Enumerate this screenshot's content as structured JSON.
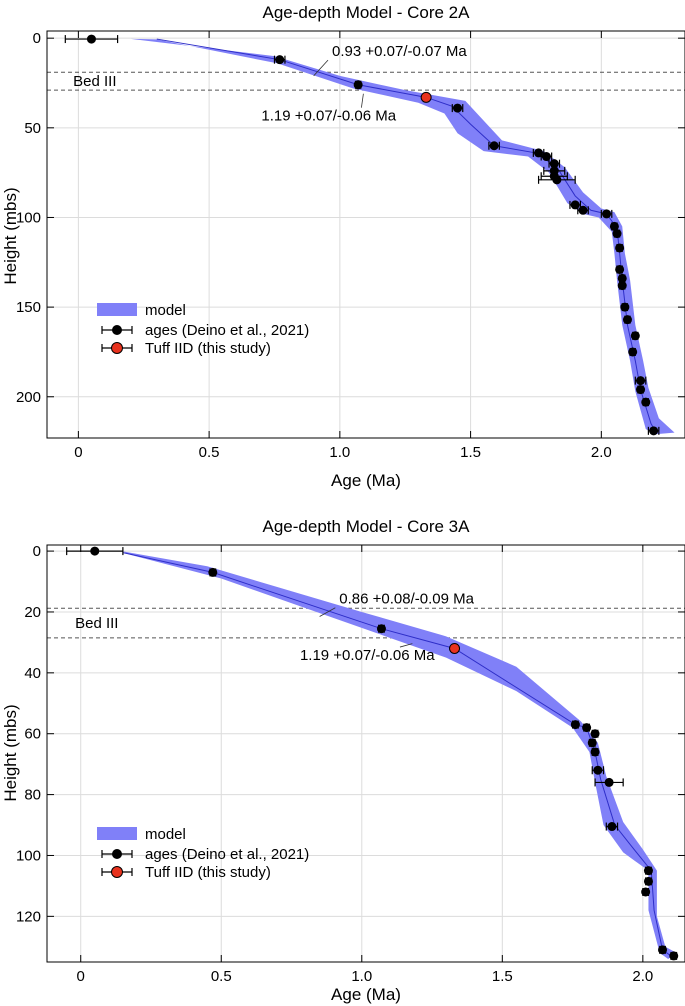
{
  "chart_data": [
    {
      "type": "scatter",
      "title": "Age-depth Model - Core 2A",
      "xlabel": "Age (Ma)",
      "ylabel": "Height (mbs)",
      "xlim": [
        -0.12,
        2.32
      ],
      "ylim": [
        223,
        -4
      ],
      "xticks": [
        0,
        0.5,
        1,
        1.5,
        2
      ],
      "xtick_labels": [
        "0",
        "0.5",
        "1.0",
        "1.5",
        "2.0"
      ],
      "yticks": [
        0,
        50,
        100,
        150,
        200
      ],
      "ytick_labels": [
        "0",
        "50",
        "100",
        "150",
        "200"
      ],
      "grid": true,
      "hlines": [
        19,
        29
      ],
      "bed_label": "Bed III",
      "bed_label_pos": [
        -0.02,
        24
      ],
      "annotations": [
        {
          "text": "0.93 +0.07/-0.07 Ma",
          "x": 0.9,
          "y": 21,
          "tx": 0.97,
          "ty": 10
        },
        {
          "text": "1.19 +0.07/-0.06 Ma",
          "x": 1.09,
          "y": 31,
          "tx": 0.7,
          "ty": 46
        }
      ],
      "model_line": [
        [
          0.3,
          0.5
        ],
        [
          0.77,
          12
        ],
        [
          1.07,
          26
        ],
        [
          1.33,
          33
        ],
        [
          1.43,
          38
        ],
        [
          1.5,
          48
        ],
        [
          1.59,
          60
        ],
        [
          1.75,
          64
        ],
        [
          1.83,
          72
        ],
        [
          1.9,
          88
        ],
        [
          1.96,
          96
        ],
        [
          2.02,
          98
        ],
        [
          2.06,
          106
        ],
        [
          2.07,
          120
        ],
        [
          2.08,
          135
        ],
        [
          2.1,
          160
        ],
        [
          2.13,
          180
        ],
        [
          2.15,
          196
        ],
        [
          2.19,
          215
        ],
        [
          2.21,
          220
        ]
      ],
      "model_band": [
        [
          [
            0.2,
            0.4
          ],
          [
            0.75,
            10
          ],
          [
            1.0,
            21
          ],
          [
            1.25,
            29
          ],
          [
            1.48,
            35
          ],
          [
            1.55,
            46
          ],
          [
            1.62,
            57
          ],
          [
            1.78,
            63
          ],
          [
            1.86,
            72
          ],
          [
            1.93,
            86
          ],
          [
            2.0,
            95
          ],
          [
            2.05,
            97
          ],
          [
            2.08,
            105
          ],
          [
            2.09,
            120
          ],
          [
            2.11,
            135
          ],
          [
            2.13,
            160
          ],
          [
            2.16,
            180
          ],
          [
            2.18,
            195
          ],
          [
            2.22,
            212
          ],
          [
            2.28,
            220
          ]
        ],
        [
          [
            0.3,
            0.7
          ],
          [
            0.76,
            14
          ],
          [
            1.05,
            28
          ],
          [
            1.3,
            36
          ],
          [
            1.4,
            42
          ],
          [
            1.45,
            53
          ],
          [
            1.55,
            63
          ],
          [
            1.72,
            66
          ],
          [
            1.8,
            75
          ],
          [
            1.87,
            92
          ],
          [
            1.93,
            98
          ],
          [
            1.99,
            100
          ],
          [
            2.04,
            108
          ],
          [
            2.05,
            120
          ],
          [
            2.06,
            135
          ],
          [
            2.08,
            160
          ],
          [
            2.11,
            180
          ],
          [
            2.13,
            197
          ],
          [
            2.17,
            218
          ],
          [
            2.2,
            221
          ]
        ]
      ],
      "ages": [
        {
          "x": 0.05,
          "y": 0.5,
          "xerr": [
            0.1,
            0.1
          ]
        },
        {
          "x": 0.77,
          "y": 12,
          "xerr": [
            0.02,
            0.02
          ]
        },
        {
          "x": 1.07,
          "y": 26,
          "xerr": [
            0.01,
            0.01
          ]
        },
        {
          "x": 1.45,
          "y": 39,
          "xerr": [
            0.02,
            0.02
          ]
        },
        {
          "x": 1.59,
          "y": 60,
          "xerr": [
            0.02,
            0.02
          ]
        },
        {
          "x": 1.76,
          "y": 64,
          "xerr": [
            0.02,
            0.02
          ]
        },
        {
          "x": 1.79,
          "y": 66,
          "xerr": [
            0.02,
            0.02
          ]
        },
        {
          "x": 1.82,
          "y": 70,
          "xerr": [
            0.02,
            0.02
          ]
        },
        {
          "x": 1.82,
          "y": 74,
          "xerr": [
            0.04,
            0.04
          ]
        },
        {
          "x": 1.82,
          "y": 77,
          "xerr": [
            0.05,
            0.05
          ]
        },
        {
          "x": 1.83,
          "y": 79,
          "xerr": [
            0.07,
            0.07
          ]
        },
        {
          "x": 1.9,
          "y": 93,
          "xerr": [
            0.02,
            0.02
          ]
        },
        {
          "x": 1.93,
          "y": 96,
          "xerr": [
            0.02,
            0.02
          ]
        },
        {
          "x": 2.02,
          "y": 98,
          "xerr": [
            0.02,
            0.02
          ]
        },
        {
          "x": 2.05,
          "y": 105,
          "xerr": [
            0.01,
            0.01
          ]
        },
        {
          "x": 2.06,
          "y": 109,
          "xerr": [
            0.01,
            0.01
          ]
        },
        {
          "x": 2.07,
          "y": 117,
          "xerr": [
            0.01,
            0.01
          ]
        },
        {
          "x": 2.07,
          "y": 129,
          "xerr": [
            0.01,
            0.01
          ]
        },
        {
          "x": 2.08,
          "y": 134,
          "xerr": [
            0.01,
            0.01
          ]
        },
        {
          "x": 2.08,
          "y": 138,
          "xerr": [
            0.01,
            0.01
          ]
        },
        {
          "x": 2.09,
          "y": 150,
          "xerr": [
            0.01,
            0.01
          ]
        },
        {
          "x": 2.1,
          "y": 157,
          "xerr": [
            0.01,
            0.01
          ]
        },
        {
          "x": 2.13,
          "y": 166,
          "xerr": [
            0.01,
            0.01
          ]
        },
        {
          "x": 2.12,
          "y": 175,
          "xerr": [
            0.01,
            0.01
          ]
        },
        {
          "x": 2.15,
          "y": 191,
          "xerr": [
            0.02,
            0.02
          ]
        },
        {
          "x": 2.15,
          "y": 196,
          "xerr": [
            0.01,
            0.01
          ]
        },
        {
          "x": 2.17,
          "y": 203,
          "xerr": [
            0.01,
            0.01
          ]
        },
        {
          "x": 2.2,
          "y": 219,
          "xerr": [
            0.02,
            0.02
          ]
        }
      ],
      "tuff": [
        {
          "x": 1.33,
          "y": 33
        }
      ],
      "legend": {
        "placement": "lower-left",
        "model": "model",
        "ages": "ages (Deino et al., 2021)",
        "tuff": "Tuff IID (this study)"
      }
    },
    {
      "type": "scatter",
      "title": "Age-depth Model - Core 3A",
      "xlabel": "Age (Ma)",
      "ylabel": "Height (mbs)",
      "xlim": [
        -0.12,
        2.15
      ],
      "ylim": [
        135,
        -2
      ],
      "xticks": [
        0,
        0.5,
        1,
        1.5,
        2
      ],
      "xtick_labels": [
        "0",
        "0.5",
        "1.0",
        "1.5",
        "2.0"
      ],
      "yticks": [
        0,
        20,
        40,
        60,
        80,
        100,
        120
      ],
      "ytick_labels": [
        "0",
        "20",
        "40",
        "60",
        "80",
        "100",
        "120"
      ],
      "grid": true,
      "hlines": [
        18.8,
        28.5
      ],
      "bed_label": "Bed III",
      "bed_label_pos": [
        -0.02,
        23.6
      ],
      "annotations": [
        {
          "text": "0.86 +0.08/-0.09 Ma",
          "x": 0.85,
          "y": 21.5,
          "tx": 0.92,
          "ty": 17.3
        },
        {
          "text": "1.19 +0.07/-0.06 Ma",
          "x": 1.18,
          "y": 30.4,
          "tx": 0.78,
          "ty": 35.8
        }
      ],
      "model_line": [
        [
          0.15,
          0.5
        ],
        [
          0.47,
          7
        ],
        [
          1.07,
          25.5
        ],
        [
          1.33,
          32
        ],
        [
          1.76,
          57
        ],
        [
          1.8,
          58
        ],
        [
          1.83,
          66
        ],
        [
          1.85,
          75
        ],
        [
          1.9,
          90
        ],
        [
          1.96,
          97
        ],
        [
          2.03,
          105
        ],
        [
          2.04,
          118
        ],
        [
          2.07,
          131
        ],
        [
          2.1,
          133
        ]
      ],
      "model_band": [
        [
          [
            0.15,
            0.1
          ],
          [
            0.45,
            5
          ],
          [
            1.0,
            20
          ],
          [
            1.3,
            28
          ],
          [
            1.55,
            38
          ],
          [
            1.78,
            56
          ],
          [
            1.84,
            63
          ],
          [
            1.87,
            74
          ],
          [
            1.93,
            89
          ],
          [
            2.0,
            98
          ],
          [
            2.05,
            105
          ],
          [
            2.05,
            120
          ],
          [
            2.08,
            130
          ],
          [
            2.12,
            132
          ]
        ],
        [
          [
            0.17,
            1.1
          ],
          [
            0.5,
            9
          ],
          [
            1.1,
            28.5
          ],
          [
            1.3,
            35
          ],
          [
            1.55,
            46
          ],
          [
            1.75,
            58
          ],
          [
            1.81,
            66
          ],
          [
            1.83,
            76
          ],
          [
            1.86,
            90
          ],
          [
            1.93,
            99
          ],
          [
            2.02,
            105
          ],
          [
            2.02,
            118
          ],
          [
            2.06,
            132
          ],
          [
            2.09,
            134
          ]
        ]
      ],
      "ages": [
        {
          "x": 0.05,
          "y": 0,
          "xerr": [
            0.1,
            0.1
          ]
        },
        {
          "x": 0.47,
          "y": 7,
          "xerr": [
            0.01,
            0.01
          ]
        },
        {
          "x": 1.07,
          "y": 25.5,
          "xerr": [
            0.01,
            0.01
          ]
        },
        {
          "x": 1.76,
          "y": 57,
          "xerr": [
            0.01,
            0.01
          ]
        },
        {
          "x": 1.8,
          "y": 58,
          "xerr": [
            0.01,
            0.01
          ]
        },
        {
          "x": 1.83,
          "y": 60,
          "xerr": [
            0.01,
            0.01
          ]
        },
        {
          "x": 1.82,
          "y": 63,
          "xerr": [
            0.01,
            0.01
          ]
        },
        {
          "x": 1.83,
          "y": 66,
          "xerr": [
            0.01,
            0.01
          ]
        },
        {
          "x": 1.84,
          "y": 72,
          "xerr": [
            0.02,
            0.02
          ]
        },
        {
          "x": 1.88,
          "y": 76,
          "xerr": [
            0.05,
            0.05
          ]
        },
        {
          "x": 1.89,
          "y": 90.5,
          "xerr": [
            0.02,
            0.02
          ]
        },
        {
          "x": 2.02,
          "y": 105,
          "xerr": [
            0.01,
            0.01
          ]
        },
        {
          "x": 2.02,
          "y": 108.5,
          "xerr": [
            0.01,
            0.01
          ]
        },
        {
          "x": 2.01,
          "y": 112,
          "xerr": [
            0.01,
            0.01
          ]
        },
        {
          "x": 2.07,
          "y": 131,
          "xerr": [
            0.01,
            0.01
          ]
        },
        {
          "x": 2.11,
          "y": 133,
          "xerr": [
            0.01,
            0.01
          ]
        }
      ],
      "tuff": [
        {
          "x": 1.33,
          "y": 32
        }
      ],
      "legend": {
        "placement": "lower-left",
        "model": "model",
        "ages": "ages (Deino et al., 2021)",
        "tuff": "Tuff IID (this study)"
      }
    }
  ]
}
